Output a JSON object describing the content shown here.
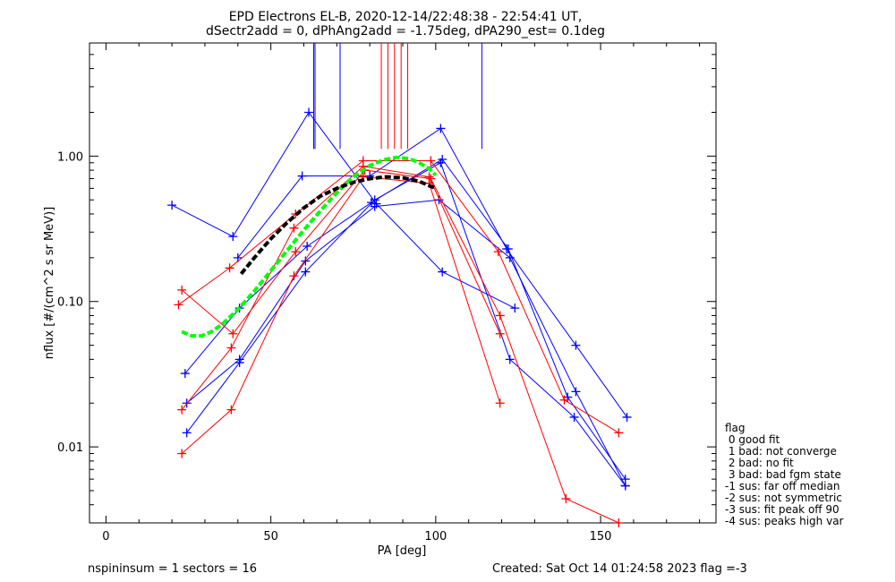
{
  "chart_data": {
    "type": "scatter",
    "title": "EPD Electrons EL-B, 2020-12-14/22:48:38 - 22:54:41 UT,",
    "subtitle": "dSectr2add = 0, dPhAng2add = -1.75deg, dPA290_est=   0.1deg",
    "xlabel": "PA [deg]",
    "ylabel": "nflux [#/(cm^2 s sr MeV)]",
    "xlim": [
      -5,
      185
    ],
    "ylim": [
      0.003,
      6.0
    ],
    "yscale": "log",
    "x_ticks": [
      "0",
      "50",
      "100",
      "150"
    ],
    "y_ticks": [
      "0.01",
      "0.10",
      "1.00"
    ],
    "colors": {
      "blue": "#0000ff",
      "red": "#ff0000",
      "green": "#00ff00",
      "black": "#000000"
    },
    "vertical_markers": [
      {
        "color": "blue",
        "x": [
          63,
          71,
          114,
          63.4
        ],
        "top": 6.0,
        "bottom": 1.12
      },
      {
        "color": "red",
        "x": [
          83.5,
          85.5,
          87.5,
          89.5,
          91.5
        ],
        "top": 6.0,
        "bottom": 1.12
      }
    ],
    "series": [
      {
        "color": "blue",
        "x": [
          20,
          38.5,
          61.5,
          82,
          102,
          124
        ],
        "y": [
          0.46,
          0.28,
          2.0,
          0.47,
          0.16,
          0.09
        ]
      },
      {
        "color": "blue",
        "x": [
          40,
          59.5,
          80,
          101.5,
          121.5,
          142.5,
          158
        ],
        "y": [
          0.2,
          0.73,
          0.73,
          1.55,
          0.23,
          0.05,
          0.016
        ]
      },
      {
        "color": "blue",
        "x": [
          24,
          40.5,
          61,
          80.5,
          102,
          122,
          140,
          157.5
        ],
        "y": [
          0.032,
          0.09,
          0.24,
          0.48,
          0.95,
          0.23,
          0.022,
          0.006
        ]
      },
      {
        "color": "blue",
        "x": [
          24.5,
          40.5,
          60.5,
          81.5,
          101,
          122.5,
          142.5,
          157.5
        ],
        "y": [
          0.02,
          0.04,
          0.19,
          0.45,
          0.5,
          0.2,
          0.024,
          0.0054
        ]
      },
      {
        "color": "blue",
        "x": [
          24.5,
          40.5,
          60.5,
          81.5,
          101.5,
          122.5,
          142,
          157.5
        ],
        "y": [
          0.0125,
          0.038,
          0.16,
          0.5,
          0.9,
          0.04,
          0.016,
          0.0054
        ]
      },
      {
        "color": "red",
        "x": [
          22,
          37.5,
          57.5,
          78,
          98.5,
          119,
          139,
          155.5
        ],
        "y": [
          0.095,
          0.17,
          0.4,
          0.93,
          0.93,
          0.22,
          0.021,
          0.0125
        ]
      },
      {
        "color": "red",
        "x": [
          23,
          38.5,
          57.5,
          78.5,
          98.5,
          119.5,
          139.5,
          155.5
        ],
        "y": [
          0.12,
          0.06,
          0.22,
          0.8,
          0.7,
          0.08,
          0.0044,
          0.003
        ]
      },
      {
        "color": "red",
        "x": [
          23,
          38,
          57,
          78,
          98,
          119.5
        ],
        "y": [
          0.018,
          0.048,
          0.32,
          0.85,
          0.72,
          0.06
        ]
      },
      {
        "color": "red",
        "x": [
          23,
          38,
          57,
          78,
          98,
          119.5
        ],
        "y": [
          0.009,
          0.018,
          0.15,
          0.72,
          0.65,
          0.02
        ]
      }
    ],
    "fit_curves": [
      {
        "color": "green",
        "x": [
          23,
          26,
          29,
          32,
          35,
          40,
          45,
          50,
          55,
          60,
          65,
          70,
          75,
          80,
          84,
          88,
          92,
          95,
          98,
          100
        ],
        "y": [
          0.062,
          0.058,
          0.058,
          0.062,
          0.069,
          0.088,
          0.118,
          0.163,
          0.225,
          0.31,
          0.42,
          0.56,
          0.72,
          0.86,
          0.94,
          0.98,
          0.96,
          0.9,
          0.82,
          0.74
        ]
      },
      {
        "color": "black",
        "x": [
          41,
          45,
          50,
          55,
          60,
          65,
          70,
          75,
          80,
          85,
          90,
          95,
          100
        ],
        "y": [
          0.155,
          0.2,
          0.27,
          0.35,
          0.44,
          0.53,
          0.6,
          0.66,
          0.7,
          0.72,
          0.71,
          0.67,
          0.6
        ]
      }
    ]
  },
  "legend": {
    "title": "flag",
    "items": [
      " 0 good fit",
      " 1 bad: not converge",
      " 2 bad: no fit",
      " 3 bad: bad fgm state",
      "-1 sus: far off median",
      "-2 sus: not symmetric",
      "-3 sus: fit peak off 90",
      "-4 sus: peaks high var"
    ]
  },
  "footer": {
    "left": "nspininsum =  1  sectors = 16",
    "right": "Created: Sat Oct 14 01:24:58 2023   flag =-3"
  }
}
